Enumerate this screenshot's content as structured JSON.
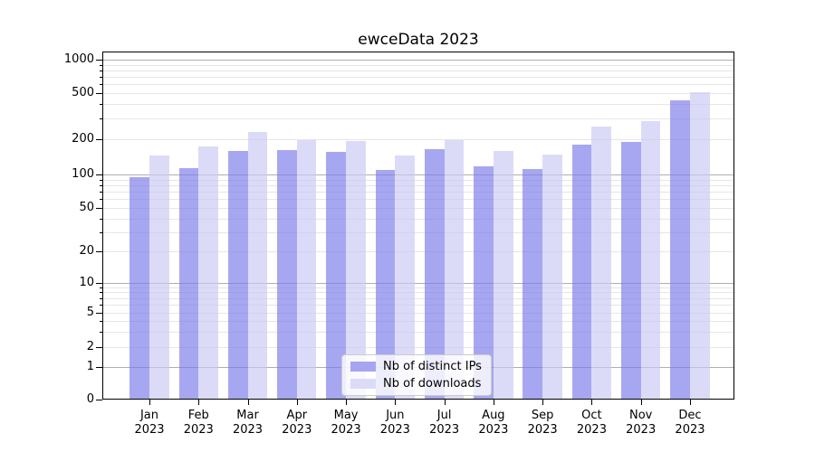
{
  "chart_data": {
    "type": "bar",
    "title": "ewceData 2023",
    "categories": [
      "Jan 2023",
      "Feb 2023",
      "Mar 2023",
      "Apr 2023",
      "May 2023",
      "Jun 2023",
      "Jul 2023",
      "Aug 2023",
      "Sep 2023",
      "Oct 2023",
      "Nov 2023",
      "Dec 2023"
    ],
    "x_month_labels": [
      "Jan",
      "Feb",
      "Mar",
      "Apr",
      "May",
      "Jun",
      "Jul",
      "Aug",
      "Sep",
      "Oct",
      "Nov",
      "Dec"
    ],
    "x_year_label": "2023",
    "series": [
      {
        "name": "Nb of distinct IPs",
        "color": "#a5a5f1",
        "values": [
          95,
          113,
          160,
          161,
          156,
          109,
          164,
          118,
          112,
          180,
          190,
          430
        ]
      },
      {
        "name": "Nb of downloads",
        "color": "#dbdbf8",
        "values": [
          146,
          174,
          233,
          197,
          193,
          146,
          197,
          159,
          149,
          256,
          285,
          505
        ]
      }
    ],
    "xlabel": "",
    "ylabel": "",
    "y_scale": "pseudo-log",
    "y_tick_labels": [
      "0",
      "1",
      "2",
      "5",
      "10",
      "20",
      "50",
      "100",
      "200",
      "500",
      "1000"
    ],
    "y_tick_values": [
      0,
      1,
      2,
      5,
      10,
      20,
      50,
      100,
      200,
      500,
      1000
    ],
    "ylim": [
      0,
      1100
    ],
    "grid": true,
    "legend_position": "lower center"
  },
  "colors": {
    "bar_distinct_ips": "#a5a5f1",
    "bar_downloads": "#dbdbf8",
    "grid_major": "#afafaf",
    "grid_minor": "#e6e6e6",
    "spine": "#000000",
    "legend_border": "#cccccc"
  }
}
